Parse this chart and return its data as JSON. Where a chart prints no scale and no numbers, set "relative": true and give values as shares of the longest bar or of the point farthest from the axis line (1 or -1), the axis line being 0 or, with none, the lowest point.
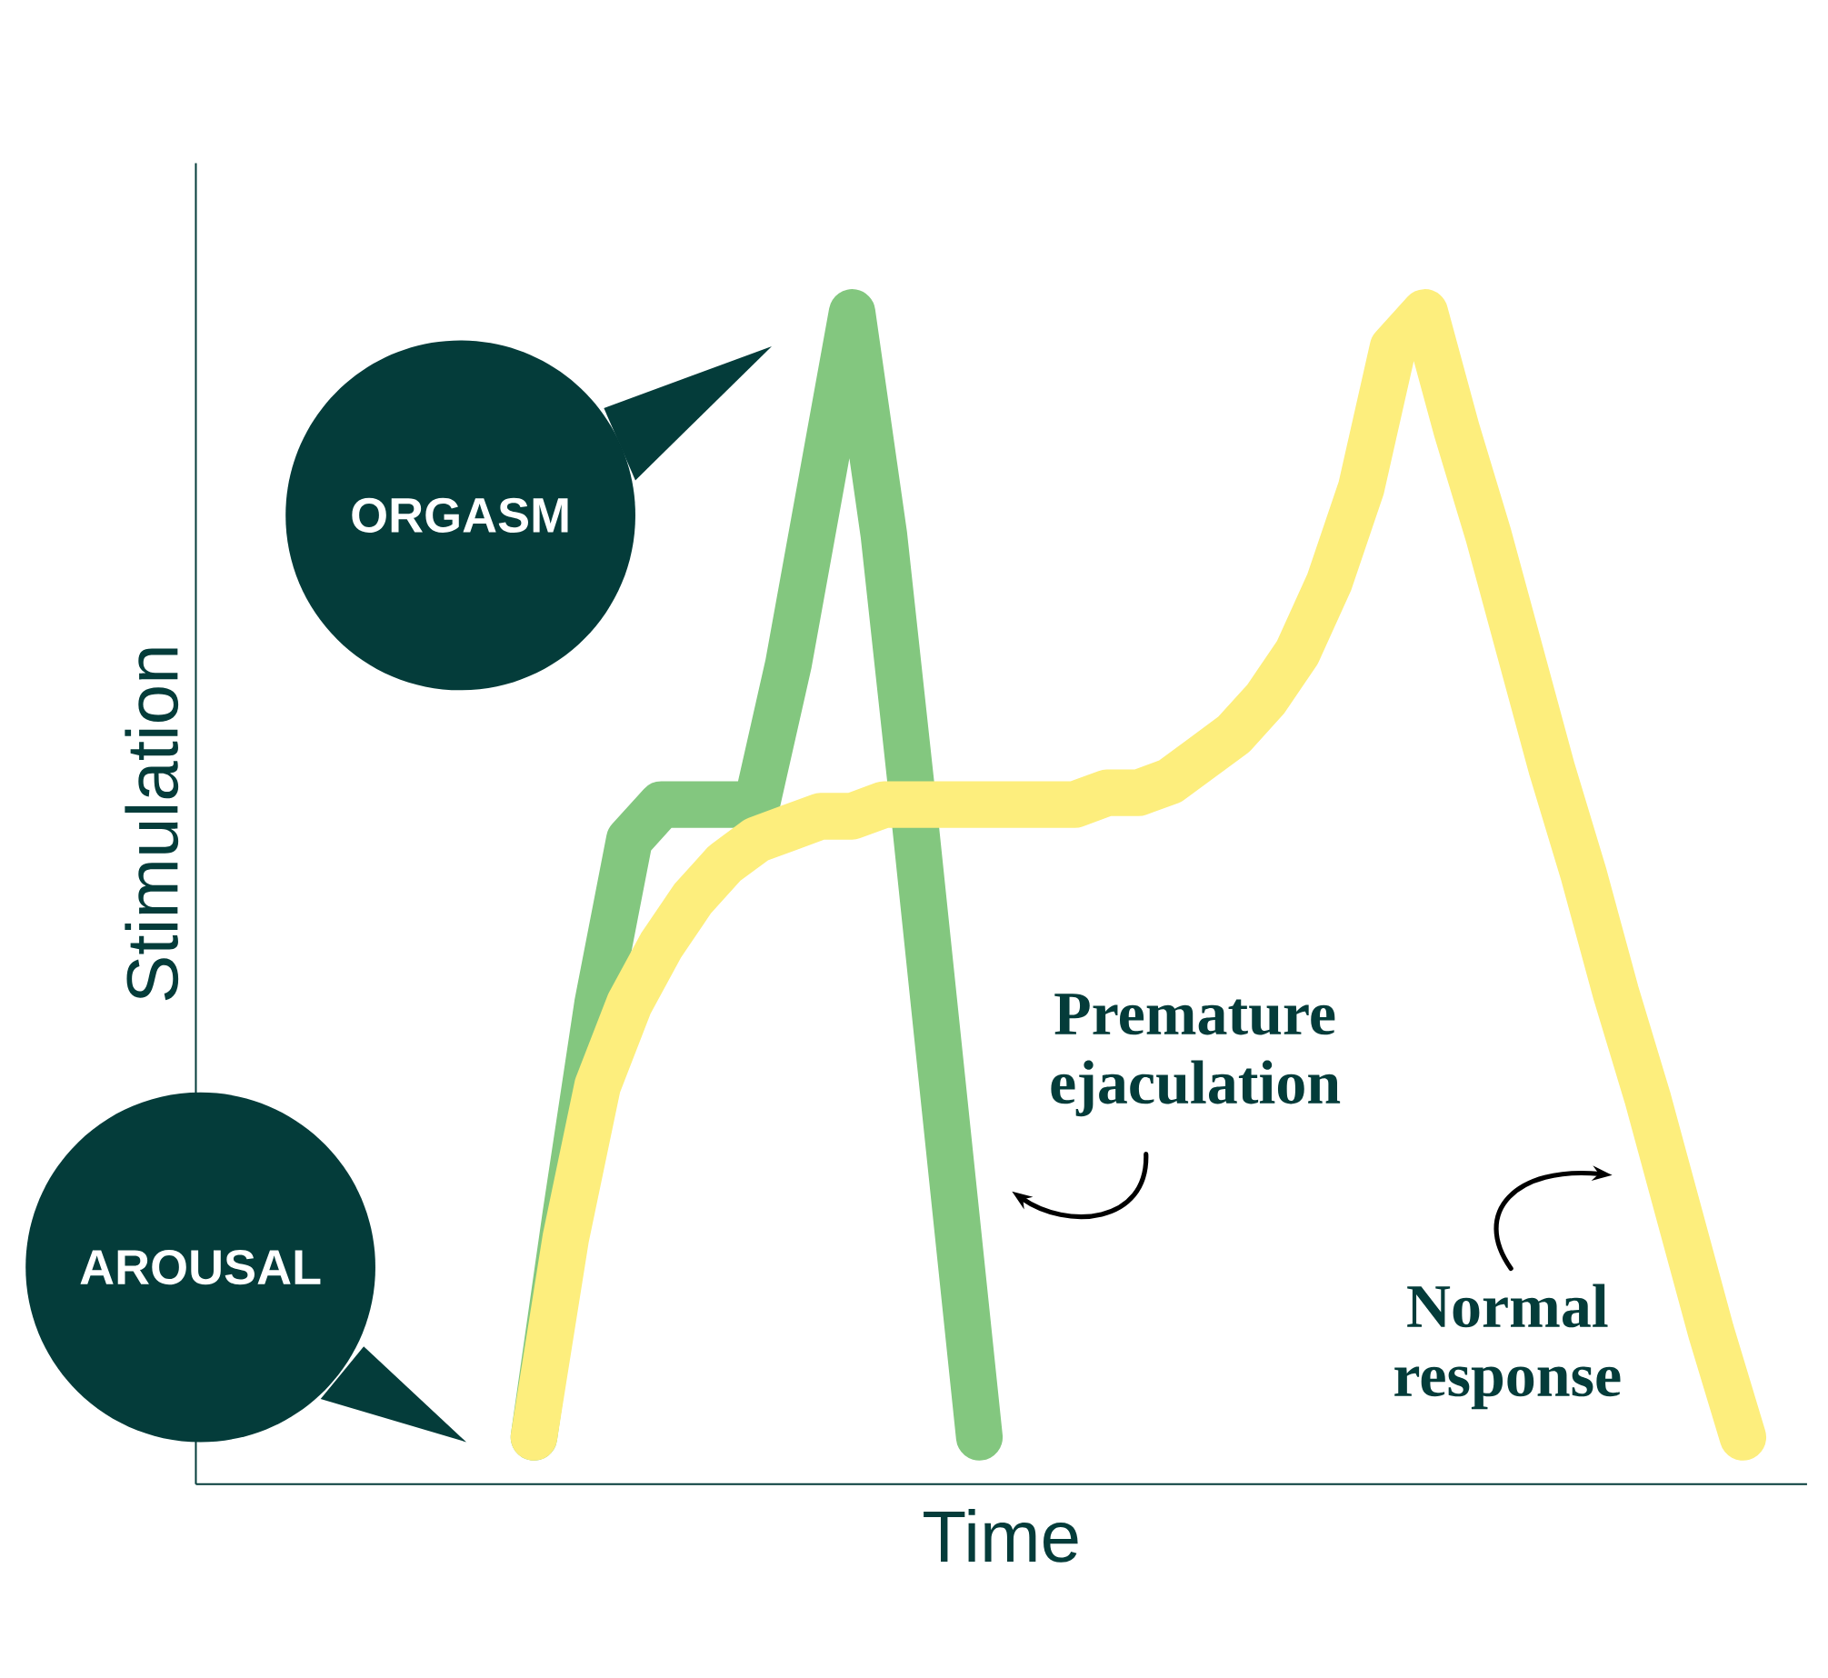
{
  "chart_data": {
    "type": "line",
    "relative": true,
    "xlabel": "Time",
    "ylabel": "Stimulation",
    "categories": [
      null,
      null,
      null,
      null,
      null,
      null,
      null,
      null,
      null,
      null,
      null,
      null,
      null,
      null,
      null,
      null,
      null,
      null,
      null,
      null,
      null,
      null,
      null,
      null,
      null,
      null,
      null,
      null,
      null,
      null,
      null,
      null,
      null,
      null,
      null,
      null,
      null,
      null,
      null
    ],
    "series": [
      {
        "name": "Premature ejaculation",
        "color": "#83c77f",
        "values": [
          0.04,
          0.23,
          0.41,
          0.55,
          0.58,
          0.58,
          0.58,
          0.58,
          0.7,
          0.85,
          1.0,
          0.81,
          0.56,
          0.3,
          0.04,
          null,
          null,
          null,
          null,
          null,
          null,
          null,
          null,
          null,
          null,
          null,
          null,
          null,
          null,
          null,
          null,
          null,
          null,
          null,
          null,
          null,
          null,
          null,
          null
        ]
      },
      {
        "name": "Normal response",
        "color": "#fdee7d",
        "values": [
          0.04,
          0.21,
          0.34,
          0.41,
          0.46,
          0.5,
          0.53,
          0.55,
          0.56,
          0.57,
          0.57,
          0.58,
          0.58,
          0.58,
          0.58,
          0.58,
          0.58,
          0.58,
          0.59,
          0.59,
          0.6,
          0.62,
          0.64,
          0.67,
          0.71,
          0.77,
          0.85,
          0.97,
          1.0,
          0.9,
          0.81,
          0.71,
          0.61,
          0.52,
          0.42,
          0.33,
          0.23,
          0.13,
          0.04
        ]
      }
    ],
    "annotations": [
      "ORGASM",
      "AROUSAL"
    ],
    "legend": false
  }
}
